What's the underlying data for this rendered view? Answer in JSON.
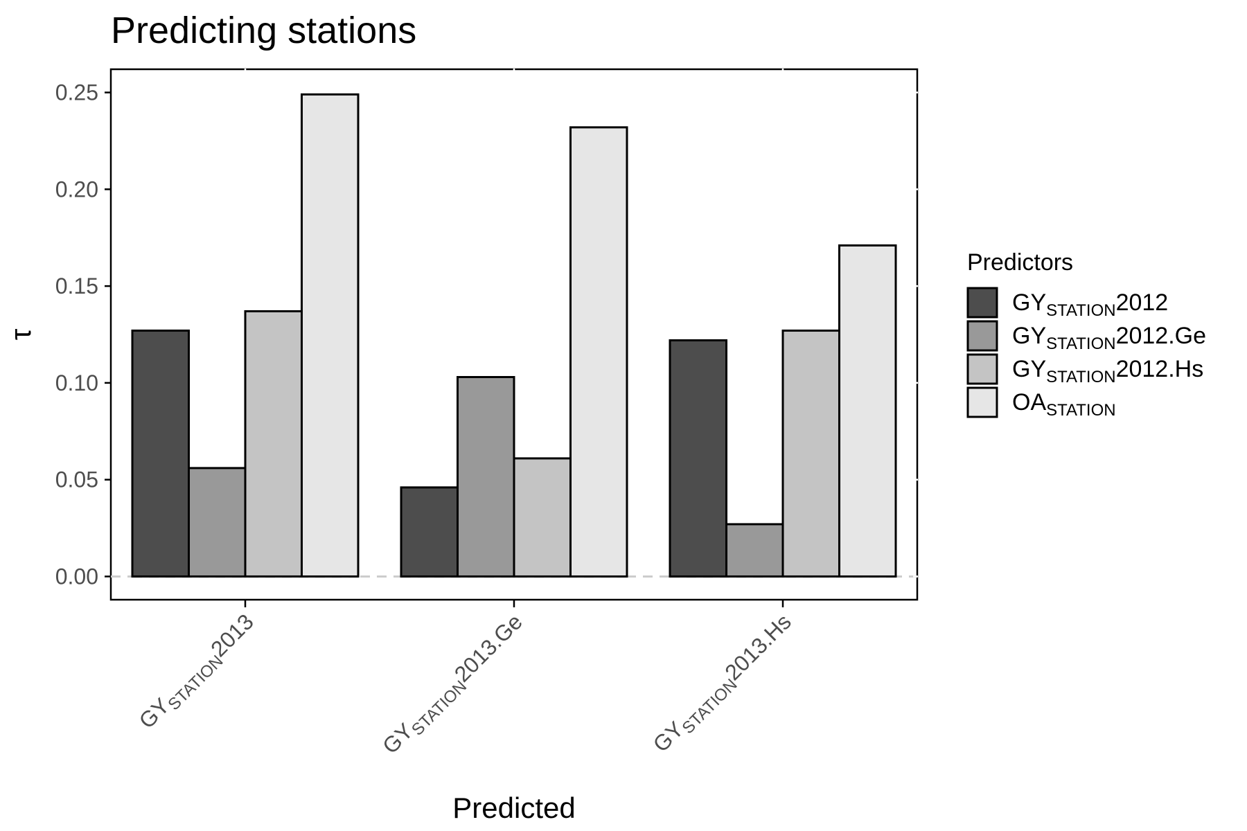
{
  "chart_data": {
    "type": "bar",
    "title": "Predicting stations",
    "xlabel": "Predicted",
    "ylabel": "τ",
    "ylim": [
      -0.012,
      0.262
    ],
    "yticks": [
      "0.00",
      "0.05",
      "0.10",
      "0.15",
      "0.20",
      "0.25"
    ],
    "ytick_values": [
      0,
      0.05,
      0.1,
      0.15,
      0.2,
      0.25
    ],
    "categories": [
      {
        "main": "GY",
        "sub": "STATION",
        "suffix": "2013"
      },
      {
        "main": "GY",
        "sub": "STATION",
        "suffix": "2013.Ge"
      },
      {
        "main": "GY",
        "sub": "STATION",
        "suffix": "2013.Hs"
      }
    ],
    "legend_title": "Predictors",
    "legend_position": "right",
    "grid": false,
    "reference_line": 0,
    "series": [
      {
        "name": {
          "main": "GY",
          "sub": "STATION",
          "suffix": "2012"
        },
        "color": "#4d4d4d",
        "values": [
          0.127,
          0.046,
          0.122
        ]
      },
      {
        "name": {
          "main": "GY",
          "sub": "STATION",
          "suffix": "2012.Ge"
        },
        "color": "#999999",
        "values": [
          0.056,
          0.103,
          0.027
        ]
      },
      {
        "name": {
          "main": "GY",
          "sub": "STATION",
          "suffix": "2012.Hs"
        },
        "color": "#c4c4c4",
        "values": [
          0.137,
          0.061,
          0.127
        ]
      },
      {
        "name": {
          "main": "OA",
          "sub": "STATION",
          "suffix": ""
        },
        "color": "#e6e6e6",
        "values": [
          0.249,
          0.232,
          0.171
        ]
      }
    ]
  }
}
